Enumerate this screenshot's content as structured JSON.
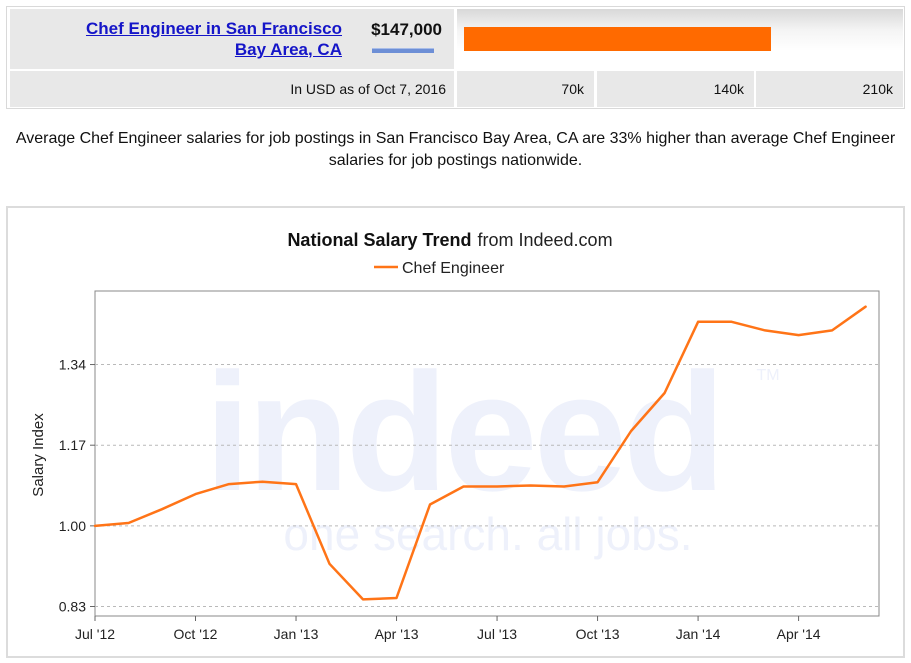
{
  "comparison": {
    "job_title_line1": "Chef Engineer in San Francisco",
    "job_title_line2": "Bay Area, CA",
    "salary": "$147,000",
    "salary_value": 147000,
    "currency_note": "In USD as of Oct 7, 2016",
    "ticks": [
      "70k",
      "140k",
      "210k"
    ],
    "scale_max": 210000,
    "bar_color": "#ff6a00"
  },
  "summary": "Average Chef Engineer salaries for job postings in San Francisco Bay Area, CA are 33% higher than average Chef Engineer salaries for job postings nationwide.",
  "watermark": {
    "brand": "indeed",
    "tagline": "one search. all jobs.",
    "mark": "TM"
  },
  "chart_data": {
    "type": "line",
    "title": "National Salary Trend",
    "title_suffix": "from Indeed.com",
    "ylabel": "Salary Index",
    "xlabel": "",
    "legend_position": "top-center",
    "grid": true,
    "ylim": [
      0.81,
      1.495
    ],
    "yticks": [
      0.83,
      1.0,
      1.17,
      1.34
    ],
    "ytick_labels": [
      "0.83",
      "1.00",
      "1.17",
      "1.34"
    ],
    "xlim": [
      0,
      23.4
    ],
    "xticks": [
      0,
      3,
      6,
      9,
      12,
      15,
      18,
      21
    ],
    "xtick_labels": [
      "Jul '12",
      "Oct '12",
      "Jan '13",
      "Apr '13",
      "Jul '13",
      "Oct '13",
      "Jan '14",
      "Apr '14"
    ],
    "series": [
      {
        "name": "Chef Engineer",
        "color": "#ff7417",
        "x": [
          0,
          1,
          2,
          3,
          4,
          5,
          6,
          7,
          8,
          9,
          10,
          11,
          12,
          13,
          14,
          15,
          16,
          17,
          18,
          19,
          20,
          21,
          22,
          23
        ],
        "y": [
          1.0,
          1.006,
          1.035,
          1.067,
          1.088,
          1.093,
          1.088,
          0.92,
          0.845,
          0.848,
          1.045,
          1.083,
          1.083,
          1.085,
          1.083,
          1.092,
          1.2,
          1.28,
          1.43,
          1.43,
          1.412,
          1.402,
          1.412,
          1.462
        ]
      }
    ]
  }
}
